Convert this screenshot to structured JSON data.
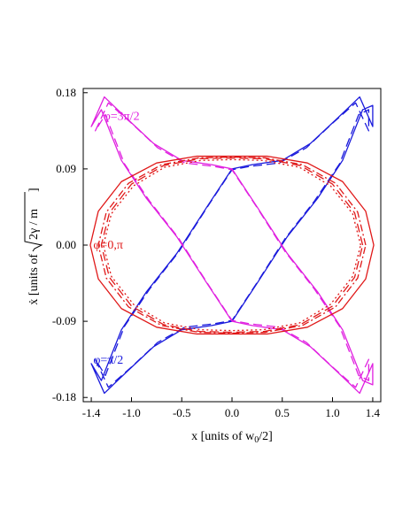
{
  "chart_data": {
    "type": "line",
    "title": "",
    "xlabel": "x [units of w",
    "xlabel_sub": "0",
    "xlabel_tail": "/2]",
    "ylabel_pre": "ẋ [units of ",
    "ylabel_sqrt": "2γ / m",
    "ylabel_tail": " ]",
    "xlim": [
      -1.48,
      1.48
    ],
    "ylim": [
      -0.185,
      0.185
    ],
    "xticks": [
      -1.4,
      -1.0,
      -0.5,
      0.0,
      0.5,
      1.0,
      1.4
    ],
    "xtick_labels": [
      "-1.4",
      "-1.0",
      "-0.5",
      "0.0",
      "0.5",
      "1.0",
      "1.4"
    ],
    "yticks": [
      -0.18,
      -0.09,
      0.0,
      0.09,
      0.18
    ],
    "ytick_labels": [
      "-0.18",
      "-0.09",
      "0.00",
      "0.09",
      "0.18"
    ],
    "grid": false,
    "legend": "none",
    "colors": {
      "blue": "#1a1adc",
      "red": "#e01818",
      "magenta": "#e020e0"
    },
    "series": [
      {
        "group": "phi_pi_over_2",
        "color": "blue",
        "style": "solid",
        "x": [
          -1.4,
          -1.27,
          -1.05,
          -0.78,
          -0.5,
          -0.2,
          0.0,
          0.25,
          0.55,
          0.85,
          1.1,
          1.3,
          1.4,
          1.4,
          1.27,
          1.05,
          0.78,
          0.5,
          0.2,
          0.0,
          -0.25,
          -0.55,
          -0.85,
          -1.1,
          -1.3,
          -1.4
        ],
        "y": [
          -0.14,
          -0.175,
          -0.15,
          -0.12,
          -0.1,
          -0.095,
          -0.09,
          -0.045,
          0.01,
          0.055,
          0.1,
          0.16,
          0.165,
          0.14,
          0.175,
          0.15,
          0.12,
          0.1,
          0.095,
          0.09,
          0.045,
          -0.01,
          -0.055,
          -0.1,
          -0.16,
          -0.14
        ]
      },
      {
        "group": "phi_pi_over_2",
        "color": "blue",
        "style": "dashed",
        "x": [
          -1.36,
          -1.23,
          -1.0,
          -0.74,
          -0.47,
          -0.18,
          0.0,
          0.24,
          0.53,
          0.82,
          1.07,
          1.26,
          1.36,
          1.36,
          1.23,
          1.0,
          0.74,
          0.47,
          0.18,
          0.0,
          -0.24,
          -0.53,
          -0.82,
          -1.07,
          -1.26,
          -1.36
        ],
        "y": [
          -0.135,
          -0.168,
          -0.144,
          -0.115,
          -0.097,
          -0.093,
          -0.089,
          -0.046,
          0.008,
          0.052,
          0.096,
          0.154,
          0.16,
          0.135,
          0.168,
          0.144,
          0.115,
          0.097,
          0.093,
          0.089,
          0.046,
          -0.008,
          -0.052,
          -0.096,
          -0.154,
          -0.135
        ]
      },
      {
        "group": "phi_3pi_over_2",
        "color": "magenta",
        "style": "solid",
        "x": [
          -1.4,
          -1.27,
          -1.05,
          -0.78,
          -0.5,
          -0.2,
          0.0,
          0.25,
          0.55,
          0.85,
          1.1,
          1.3,
          1.4,
          1.4,
          1.27,
          1.05,
          0.78,
          0.5,
          0.2,
          0.0,
          -0.25,
          -0.55,
          -0.85,
          -1.1,
          -1.3,
          -1.4
        ],
        "y": [
          0.14,
          0.175,
          0.15,
          0.12,
          0.1,
          0.095,
          0.09,
          0.045,
          -0.01,
          -0.055,
          -0.1,
          -0.16,
          -0.165,
          -0.14,
          -0.175,
          -0.15,
          -0.12,
          -0.1,
          -0.095,
          -0.09,
          -0.045,
          0.01,
          0.055,
          0.1,
          0.16,
          0.14
        ]
      },
      {
        "group": "phi_3pi_over_2",
        "color": "magenta",
        "style": "dashed",
        "x": [
          -1.36,
          -1.23,
          -1.0,
          -0.74,
          -0.47,
          -0.18,
          0.0,
          0.24,
          0.53,
          0.82,
          1.07,
          1.26,
          1.36,
          1.36,
          1.23,
          1.0,
          0.74,
          0.47,
          0.18,
          0.0,
          -0.24,
          -0.53,
          -0.82,
          -1.07,
          -1.26,
          -1.36
        ],
        "y": [
          0.135,
          0.168,
          0.144,
          0.115,
          0.097,
          0.093,
          0.089,
          0.046,
          -0.008,
          -0.052,
          -0.096,
          -0.154,
          -0.16,
          -0.135,
          -0.168,
          -0.144,
          -0.115,
          -0.097,
          -0.093,
          -0.089,
          -0.046,
          0.008,
          0.052,
          0.096,
          0.154,
          0.135
        ]
      },
      {
        "group": "phi_0_pi",
        "color": "red",
        "style": "solid",
        "x": [
          1.41,
          1.33,
          1.1,
          0.75,
          0.35,
          0.0,
          -0.35,
          -0.75,
          -1.1,
          -1.33,
          -1.41,
          -1.33,
          -1.1,
          -0.75,
          -0.35,
          0.0,
          0.35,
          0.75,
          1.1,
          1.33,
          1.41
        ],
        "y": [
          0.0,
          0.04,
          0.075,
          0.097,
          0.105,
          0.105,
          0.105,
          0.097,
          0.075,
          0.04,
          0.0,
          -0.04,
          -0.075,
          -0.097,
          -0.105,
          -0.105,
          -0.105,
          -0.097,
          -0.075,
          -0.04,
          0.0
        ]
      },
      {
        "group": "phi_0_pi",
        "color": "red",
        "style": "dashed",
        "x": [
          1.3,
          1.22,
          1.0,
          0.68,
          0.32,
          0.0,
          -0.32,
          -0.68,
          -1.0,
          -1.22,
          -1.3,
          -1.22,
          -1.0,
          -0.68,
          -0.32,
          0.0,
          0.32,
          0.68,
          1.0,
          1.22,
          1.3
        ],
        "y": [
          0.0,
          0.038,
          0.072,
          0.094,
          0.102,
          0.103,
          0.102,
          0.094,
          0.072,
          0.038,
          0.0,
          -0.038,
          -0.072,
          -0.094,
          -0.102,
          -0.103,
          -0.102,
          -0.094,
          -0.072,
          -0.038,
          0.0
        ]
      },
      {
        "group": "phi_0_pi",
        "color": "red",
        "style": "dotted",
        "x": [
          1.28,
          1.2,
          0.98,
          0.67,
          0.31,
          0.0,
          -0.31,
          -0.67,
          -0.98,
          -1.2,
          -1.28,
          -1.2,
          -0.98,
          -0.67,
          -0.31,
          0.0,
          0.31,
          0.67,
          0.98,
          1.2,
          1.28
        ],
        "y": [
          0.0,
          0.037,
          0.07,
          0.092,
          0.1,
          0.101,
          0.1,
          0.092,
          0.07,
          0.037,
          0.0,
          -0.037,
          -0.07,
          -0.092,
          -0.1,
          -0.101,
          -0.1,
          -0.092,
          -0.07,
          -0.037,
          0.0
        ]
      },
      {
        "group": "phi_0_pi",
        "color": "red",
        "style": "dashdot",
        "x": [
          1.33,
          1.25,
          1.03,
          0.7,
          0.33,
          0.0,
          -0.33,
          -0.7,
          -1.03,
          -1.25,
          -1.33,
          -1.25,
          -1.03,
          -0.7,
          -0.33,
          0.0,
          0.33,
          0.7,
          1.03,
          1.25,
          1.33
        ],
        "y": [
          0.0,
          0.039,
          0.073,
          0.095,
          0.103,
          0.104,
          0.103,
          0.095,
          0.073,
          0.039,
          0.0,
          -0.039,
          -0.073,
          -0.095,
          -0.103,
          -0.104,
          -0.103,
          -0.095,
          -0.073,
          -0.039,
          0.0
        ]
      }
    ],
    "annotations": [
      {
        "text": "φ=3π/2",
        "color": "magenta",
        "x": -1.28,
        "y": 0.148
      },
      {
        "text": "φ=0,π",
        "color": "red",
        "x": -1.38,
        "y": -0.004
      },
      {
        "text": "φ=π/2",
        "color": "blue",
        "x": -1.38,
        "y": -0.14
      }
    ]
  }
}
